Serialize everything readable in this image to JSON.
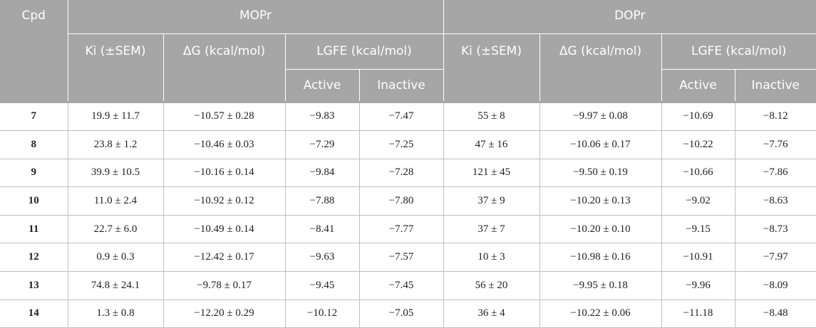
{
  "header": {
    "cpd": "Cpd",
    "mopr": "MOPr",
    "dopr": "DOPr",
    "ki": "Ki (±SEM)",
    "dg": "ΔG (kcal/mol)",
    "lgfe": "LGFE (kcal/mol)",
    "active": "Active",
    "inactive": "Inactive"
  },
  "rows": [
    {
      "cpd": "7",
      "mopr_ki": "19.9 ± 11.7",
      "mopr_dg": "−10.57 ± 0.28",
      "mopr_active": "−9.83",
      "mopr_inactive": "−7.47",
      "dopr_ki": "55 ± 8",
      "dopr_dg": "−9.97 ± 0.08",
      "dopr_active": "−10.69",
      "dopr_inactive": "−8.12"
    },
    {
      "cpd": "8",
      "mopr_ki": "23.8 ± 1.2",
      "mopr_dg": "−10.46 ± 0.03",
      "mopr_active": "−7.29",
      "mopr_inactive": "−7.25",
      "dopr_ki": "47 ± 16",
      "dopr_dg": "−10.06 ± 0.17",
      "dopr_active": "−10.22",
      "dopr_inactive": "−7.76"
    },
    {
      "cpd": "9",
      "mopr_ki": "39.9 ± 10.5",
      "mopr_dg": "−10.16 ± 0.14",
      "mopr_active": "−9.84",
      "mopr_inactive": "−7.28",
      "dopr_ki": "121 ± 45",
      "dopr_dg": "−9.50 ± 0.19",
      "dopr_active": "−10.66",
      "dopr_inactive": "−7.86"
    },
    {
      "cpd": "10",
      "mopr_ki": "11.0 ± 2.4",
      "mopr_dg": "−10.92 ± 0.12",
      "mopr_active": "−7.88",
      "mopr_inactive": "−7.80",
      "dopr_ki": "37 ± 9",
      "dopr_dg": "−10.20 ± 0.13",
      "dopr_active": "−9.02",
      "dopr_inactive": "−8.63"
    },
    {
      "cpd": "11",
      "mopr_ki": "22.7 ± 6.0",
      "mopr_dg": "−10.49 ± 0.14",
      "mopr_active": "−8.41",
      "mopr_inactive": "−7.77",
      "dopr_ki": "37 ± 7",
      "dopr_dg": "−10.20 ± 0.10",
      "dopr_active": "−9.15",
      "dopr_inactive": "−8.73"
    },
    {
      "cpd": "12",
      "mopr_ki": "0.9 ± 0.3",
      "mopr_dg": "−12.42 ± 0.17",
      "mopr_active": "−9.63",
      "mopr_inactive": "−7.57",
      "dopr_ki": "10 ± 3",
      "dopr_dg": "−10.98 ± 0.16",
      "dopr_active": "−10.91",
      "dopr_inactive": "−7.97"
    },
    {
      "cpd": "13",
      "mopr_ki": "74.8 ± 24.1",
      "mopr_dg": "−9.78 ± 0.17",
      "mopr_active": "−9.45",
      "mopr_inactive": "−7.45",
      "dopr_ki": "56 ± 20",
      "dopr_dg": "−9.95 ± 0.18",
      "dopr_active": "−9.96",
      "dopr_inactive": "−8.09"
    },
    {
      "cpd": "14",
      "mopr_ki": "1.3 ± 0.8",
      "mopr_dg": "−12.20 ± 0.29",
      "mopr_active": "−10.12",
      "mopr_inactive": "−7.05",
      "dopr_ki": "36 ± 4",
      "dopr_dg": "−10.22 ± 0.06",
      "dopr_active": "−11.18",
      "dopr_inactive": "−8.48"
    }
  ]
}
